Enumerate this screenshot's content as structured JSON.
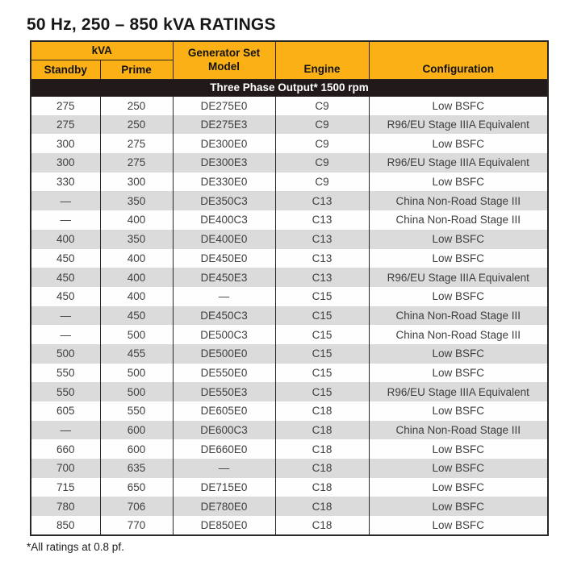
{
  "page": {
    "title": "50 Hz, 250 – 850 kVA RATINGS",
    "footnote": "*All ratings at 0.8 pf."
  },
  "colors": {
    "header_bg": "#FBB116",
    "banner_bg": "#221A1A",
    "banner_fg": "#FFFFFF",
    "row_alt_bg": "#DBDBDB",
    "row_bg": "#FEFEFE",
    "border_color": "#2B2523",
    "data_fg": "#3E3E3E",
    "title_fg": "#171717"
  },
  "table": {
    "header": {
      "kva_group": "kVA",
      "standby": "Standby",
      "prime": "Prime",
      "model": "Generator Set Model",
      "engine": "Engine",
      "configuration": "Configuration"
    },
    "banner": "Three Phase Output* 1500 rpm",
    "columns": [
      "standby",
      "prime",
      "model",
      "engine",
      "configuration"
    ],
    "rows": [
      [
        "275",
        "250",
        "DE275E0",
        "C9",
        "Low BSFC"
      ],
      [
        "275",
        "250",
        "DE275E3",
        "C9",
        "R96/EU Stage IIIA Equivalent"
      ],
      [
        "300",
        "275",
        "DE300E0",
        "C9",
        "Low BSFC"
      ],
      [
        "300",
        "275",
        "DE300E3",
        "C9",
        "R96/EU Stage IIIA Equivalent"
      ],
      [
        "330",
        "300",
        "DE330E0",
        "C9",
        "Low BSFC"
      ],
      [
        "—",
        "350",
        "DE350C3",
        "C13",
        "China Non-Road Stage III"
      ],
      [
        "—",
        "400",
        "DE400C3",
        "C13",
        "China Non-Road Stage III"
      ],
      [
        "400",
        "350",
        "DE400E0",
        "C13",
        "Low BSFC"
      ],
      [
        "450",
        "400",
        "DE450E0",
        "C13",
        "Low BSFC"
      ],
      [
        "450",
        "400",
        "DE450E3",
        "C13",
        "R96/EU Stage IIIA Equivalent"
      ],
      [
        "450",
        "400",
        "—",
        "C15",
        "Low BSFC"
      ],
      [
        "—",
        "450",
        "DE450C3",
        "C15",
        "China Non-Road Stage III"
      ],
      [
        "—",
        "500",
        "DE500C3",
        "C15",
        "China Non-Road Stage III"
      ],
      [
        "500",
        "455",
        "DE500E0",
        "C15",
        "Low BSFC"
      ],
      [
        "550",
        "500",
        "DE550E0",
        "C15",
        "Low BSFC"
      ],
      [
        "550",
        "500",
        "DE550E3",
        "C15",
        "R96/EU Stage IIIA Equivalent"
      ],
      [
        "605",
        "550",
        "DE605E0",
        "C18",
        "Low BSFC"
      ],
      [
        "—",
        "600",
        "DE600C3",
        "C18",
        "China Non-Road Stage III"
      ],
      [
        "660",
        "600",
        "DE660E0",
        "C18",
        "Low BSFC"
      ],
      [
        "700",
        "635",
        "—",
        "C18",
        "Low BSFC"
      ],
      [
        "715",
        "650",
        "DE715E0",
        "C18",
        "Low BSFC"
      ],
      [
        "780",
        "706",
        "DE780E0",
        "C18",
        "Low BSFC"
      ],
      [
        "850",
        "770",
        "DE850E0",
        "C18",
        "Low BSFC"
      ]
    ]
  }
}
